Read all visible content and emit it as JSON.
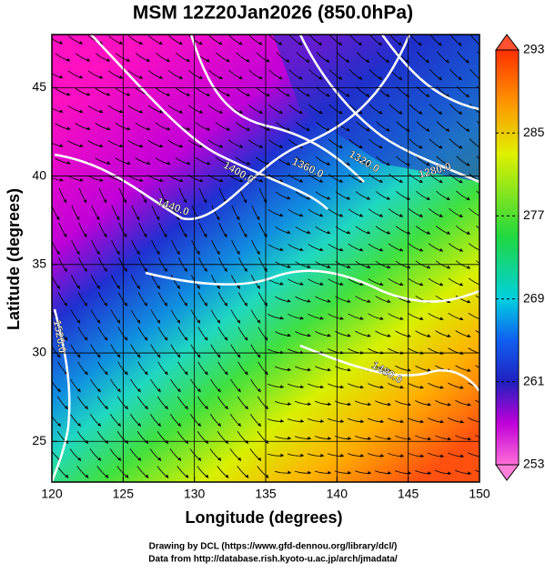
{
  "title": "MSM 12Z20Jan2026 (850.0hPa)",
  "x_axis": {
    "label": "Longitude (degrees)",
    "lim": [
      120,
      150
    ],
    "ticks": [
      120,
      125,
      130,
      135,
      140,
      145,
      150
    ]
  },
  "y_axis": {
    "label": "Latitude  (degrees)",
    "lim": [
      22.7,
      48
    ],
    "ticks": [
      25,
      30,
      35,
      40,
      45
    ]
  },
  "colorbar": {
    "lim": [
      253,
      293
    ],
    "ticks": [
      253,
      261,
      269,
      277,
      285,
      293
    ]
  },
  "contour_labels": [
    "1440.0",
    "1400.0",
    "1360.0",
    "1320.0",
    "1280.0",
    "1520.0",
    "1480.0"
  ],
  "credits": [
    "Drawing by DCL (https://www.gfd-dennou.org/library/dcl/)",
    "Data from http://database.rish.kyoto-u.ac.jp/arch/jmadata/"
  ]
}
